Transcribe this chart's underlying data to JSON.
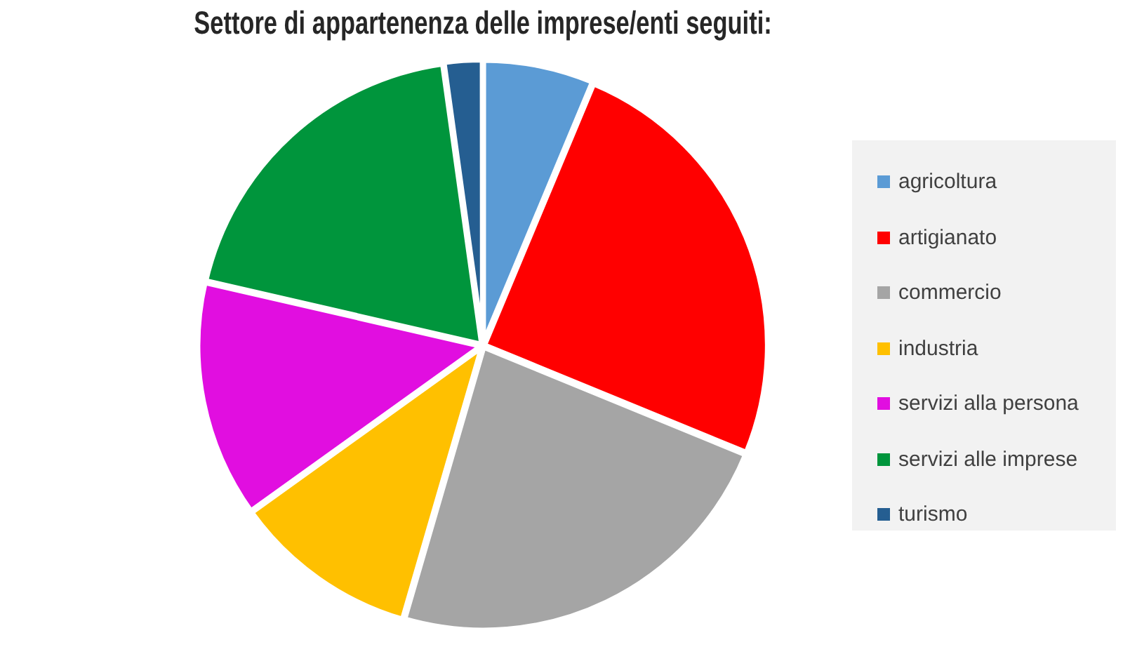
{
  "chart_data": {
    "type": "pie",
    "title": "Settore di appartenenza delle imprese/enti seguiti:",
    "categories": [
      "agricoltura",
      "artigianato",
      "commercio",
      "industria",
      "servizi alla persona",
      "servizi alle imprese",
      "turismo"
    ],
    "values": [
      6.3,
      24.9,
      23.3,
      10.6,
      13.5,
      19.2,
      2.2
    ],
    "colors": [
      "#5b9bd5",
      "#ff0000",
      "#a5a5a5",
      "#ffc000",
      "#e10ee0",
      "#00953c",
      "#255e91"
    ],
    "legend": "right"
  }
}
